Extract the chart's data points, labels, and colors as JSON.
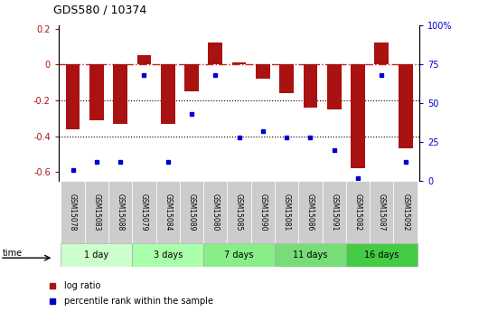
{
  "title": "GDS580 / 10374",
  "samples": [
    "GSM15078",
    "GSM15083",
    "GSM15088",
    "GSM15079",
    "GSM15084",
    "GSM15089",
    "GSM15080",
    "GSM15085",
    "GSM15090",
    "GSM15081",
    "GSM15086",
    "GSM15091",
    "GSM15082",
    "GSM15087",
    "GSM15092"
  ],
  "log_ratio": [
    -0.36,
    -0.31,
    -0.33,
    0.05,
    -0.33,
    -0.15,
    0.12,
    0.01,
    -0.08,
    -0.16,
    -0.24,
    -0.25,
    -0.58,
    0.12,
    -0.47
  ],
  "percentile_rank": [
    7,
    12,
    12,
    68,
    12,
    43,
    68,
    28,
    32,
    28,
    28,
    20,
    2,
    68,
    12
  ],
  "groups": [
    {
      "label": "1 day",
      "indices": [
        0,
        1,
        2
      ],
      "color": "#ccffcc"
    },
    {
      "label": "3 days",
      "indices": [
        3,
        4,
        5
      ],
      "color": "#aaffaa"
    },
    {
      "label": "7 days",
      "indices": [
        6,
        7,
        8
      ],
      "color": "#88ee88"
    },
    {
      "label": "11 days",
      "indices": [
        9,
        10,
        11
      ],
      "color": "#77dd77"
    },
    {
      "label": "16 days",
      "indices": [
        12,
        13,
        14
      ],
      "color": "#44cc44"
    }
  ],
  "ylim_left": [
    -0.65,
    0.22
  ],
  "ylim_right": [
    0,
    100
  ],
  "bar_color": "#aa1111",
  "dot_color": "#0000cc",
  "hline_color": "#cc2222",
  "grid_color": "#000000",
  "legend_red": "log ratio",
  "legend_blue": "percentile rank within the sample",
  "pct_ticks": [
    0,
    25,
    50,
    75,
    100
  ],
  "pct_tick_labels": [
    "0",
    "25",
    "50",
    "75",
    "100%"
  ],
  "left_ticks": [
    -0.6,
    -0.4,
    -0.2,
    0.0,
    0.2
  ],
  "left_tick_labels": [
    "-0.6",
    "-0.4",
    "-0.2",
    "0",
    "0.2"
  ]
}
